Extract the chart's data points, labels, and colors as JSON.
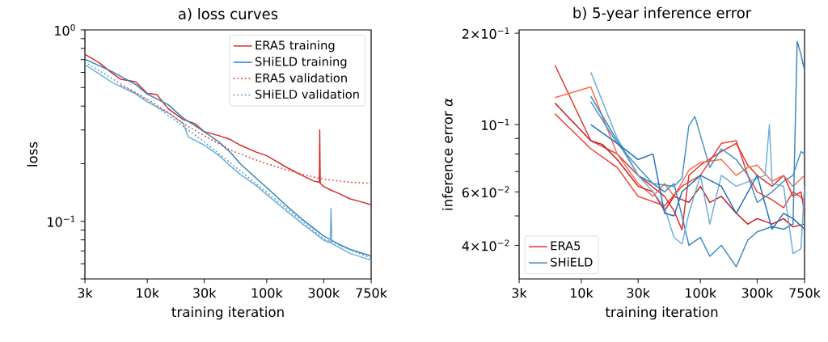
{
  "chart_data": [
    {
      "type": "line",
      "title": "a) loss curves",
      "xlabel": "training iteration",
      "ylabel": "loss",
      "log": "xy",
      "legend": "top right",
      "xlim": [
        3000,
        750000
      ],
      "ylim": [
        0.05,
        1
      ],
      "xticks": [
        {
          "value": 3000,
          "label": "3k"
        },
        {
          "value": 10000,
          "label": "10k"
        },
        {
          "value": 30000,
          "label": "30k"
        },
        {
          "value": 100000,
          "label": "100k"
        },
        {
          "value": 300000,
          "label": "300k"
        },
        {
          "value": 750000,
          "label": "750k"
        }
      ],
      "yticks": [
        {
          "value": 0.05,
          "label": null
        },
        {
          "value": 0.06,
          "label": null
        },
        {
          "value": 0.07,
          "label": null
        },
        {
          "value": 0.08,
          "label": null
        },
        {
          "value": 0.09,
          "label": null
        },
        {
          "value": 0.1,
          "label": "10$^{−1}$"
        },
        {
          "value": 0.2,
          "label": null
        },
        {
          "value": 0.3,
          "label": null
        },
        {
          "value": 0.4,
          "label": null
        },
        {
          "value": 0.5,
          "label": null
        },
        {
          "value": 0.6,
          "label": null
        },
        {
          "value": 0.7,
          "label": null
        },
        {
          "value": 0.8,
          "label": null
        },
        {
          "value": 0.9,
          "label": null
        },
        {
          "value": 1,
          "label": "10$^{0}$"
        }
      ],
      "series": [
        {
          "name": "ERA5 training",
          "color": "#d62a24",
          "line_style": "solid",
          "x": [
            3000,
            4000,
            5000,
            6000,
            8000,
            10000,
            12000,
            15000,
            20000,
            25000,
            30000,
            40000,
            50000,
            60000,
            80000,
            100000,
            120000,
            150000,
            200000,
            250000,
            276000,
            278000,
            281000,
            300000,
            350000,
            400000,
            500000,
            600000,
            750000
          ],
          "values": [
            0.746,
            0.67,
            0.598,
            0.552,
            0.535,
            0.466,
            0.459,
            0.387,
            0.34,
            0.324,
            0.294,
            0.28,
            0.267,
            0.25,
            0.231,
            0.22,
            0.206,
            0.19,
            0.173,
            0.162,
            0.16,
            0.3,
            0.158,
            0.152,
            0.145,
            0.14,
            0.131,
            0.127,
            0.122
          ]
        },
        {
          "name": "SHiELD training",
          "color": "#3182bd",
          "line_style": "solid",
          "x": [
            3000,
            5000,
            8000,
            10000,
            15000,
            20000,
            30000,
            40000,
            50000,
            60000,
            80000,
            100000,
            150000,
            200000,
            300000,
            400000,
            500000,
            750000
          ],
          "values": [
            0.703,
            0.608,
            0.518,
            0.462,
            0.406,
            0.346,
            0.294,
            0.259,
            0.228,
            0.2,
            0.17,
            0.15,
            0.119,
            0.102,
            0.0838,
            0.076,
            0.0713,
            0.0658
          ]
        },
        {
          "color": "#6baed6",
          "line_style": "solid",
          "x": [
            3000,
            5000,
            8000,
            10000,
            15000,
            20000,
            22000,
            30000,
            40000,
            50000,
            60000,
            80000,
            100000,
            150000,
            200000,
            300000,
            340000,
            346000,
            352000,
            500000,
            750000
          ],
          "values": [
            0.659,
            0.535,
            0.462,
            0.42,
            0.369,
            0.324,
            0.276,
            0.25,
            0.22,
            0.194,
            0.176,
            0.155,
            0.138,
            0.112,
            0.0968,
            0.0798,
            0.0773,
            0.117,
            0.0765,
            0.068,
            0.0626
          ]
        },
        {
          "name": "ERA5 validation",
          "color": "#e0352b",
          "line_style": "dotted",
          "x": [
            6000,
            8000,
            10000,
            15000,
            20000,
            30000,
            50000,
            80000,
            100000,
            150000,
            200000,
            300000,
            500000,
            750000
          ],
          "values": [
            0.513,
            0.47,
            0.434,
            0.369,
            0.324,
            0.28,
            0.235,
            0.21,
            0.2,
            0.185,
            0.176,
            0.166,
            0.16,
            0.158
          ]
        },
        {
          "name": "SHiELD validation",
          "color": "#4292c6",
          "line_style": "dotted",
          "x": [
            3000,
            10000,
            30000,
            100000,
            300000,
            750000
          ],
          "values": [
            0.68,
            0.43,
            0.26,
            0.142,
            0.081,
            0.064
          ]
        }
      ]
    },
    {
      "type": "line",
      "title": "b) 5-year inference error",
      "xlabel": "training iteration",
      "ylabel": "inference error *α*",
      "log": "xy",
      "legend": "bottom left",
      "xlim": [
        3000,
        750000
      ],
      "ylim": [
        0.031,
        0.205
      ],
      "xticks": [
        {
          "value": 3000,
          "label": "3k"
        },
        {
          "value": 10000,
          "label": "10k"
        },
        {
          "value": 30000,
          "label": "30k"
        },
        {
          "value": 100000,
          "label": "100k"
        },
        {
          "value": 300000,
          "label": "300k"
        },
        {
          "value": 750000,
          "label": "750k"
        }
      ],
      "yticks": [
        {
          "value": 0.04,
          "label": "4×10$^{−2}$"
        },
        {
          "value": 0.05,
          "label": null
        },
        {
          "value": 0.06,
          "label": "6×10$^{−2}$"
        },
        {
          "value": 0.07,
          "label": null
        },
        {
          "value": 0.08,
          "label": null
        },
        {
          "value": 0.09,
          "label": null
        },
        {
          "value": 0.1,
          "label": "10$^{−1}$"
        },
        {
          "value": 0.2,
          "label": "2×10$^{−1}$"
        }
      ],
      "series": [
        {
          "name": "ERA5",
          "color": "#e0302a",
          "x": [
            6000,
            12000,
            20000,
            30000,
            50000,
            60000,
            70000,
            80000,
            100000,
            150000,
            200000,
            250000,
            300000,
            400000,
            500000,
            600000,
            700000,
            750000
          ],
          "values": [
            0.157,
            0.0885,
            0.08,
            0.068,
            0.058,
            0.052,
            0.045,
            0.068,
            0.0735,
            0.0815,
            0.0867,
            0.0735,
            0.068,
            0.0626,
            0.068,
            0.058,
            0.06,
            0.051
          ]
        },
        {
          "color": "#fb6a4a",
          "x": [
            6000,
            12000,
            20000,
            30000,
            40000,
            50000,
            60000,
            80000,
            100000,
            150000,
            200000,
            250000,
            300000,
            400000,
            500000,
            600000,
            750000
          ],
          "values": [
            0.1226,
            0.133,
            0.08,
            0.0639,
            0.058,
            0.0639,
            0.058,
            0.0707,
            0.075,
            0.0767,
            0.068,
            0.0722,
            0.0735,
            0.065,
            0.068,
            0.0626,
            0.068
          ]
        },
        {
          "color": "#cb181d",
          "x": [
            6000,
            12000,
            15000,
            20000,
            30000,
            40000,
            50000,
            60000,
            80000,
            100000,
            120000,
            150000,
            200000,
            250000,
            300000,
            400000,
            500000,
            600000,
            750000
          ],
          "values": [
            0.1177,
            0.0885,
            0.086,
            0.0767,
            0.0626,
            0.06,
            0.052,
            0.058,
            0.0554,
            0.0626,
            0.0554,
            0.058,
            0.051,
            0.047,
            0.049,
            0.047,
            0.049,
            0.046,
            0.047
          ]
        },
        {
          "color": "#ef3b2c",
          "x": [
            6000,
            12000,
            20000,
            30000,
            50000,
            70000,
            100000,
            150000,
            200000,
            250000,
            300000,
            400000,
            500000,
            600000,
            750000
          ],
          "values": [
            0.1085,
            0.0832,
            0.0722,
            0.058,
            0.054,
            0.0626,
            0.068,
            0.0867,
            0.0885,
            0.068,
            0.06,
            0.0565,
            0.0532,
            0.06,
            0.0565
          ]
        },
        {
          "name": "SHiELD",
          "color": "#3a86c0",
          "x": [
            12000,
            20000,
            30000,
            40000,
            50000,
            60000,
            70000,
            80000,
            100000,
            120000,
            150000,
            200000,
            250000,
            300000,
            400000,
            500000,
            600000,
            650000,
            700000,
            750000
          ],
          "values": [
            0.1239,
            0.0885,
            0.068,
            0.0639,
            0.06,
            0.0639,
            0.05,
            0.04,
            0.0425,
            0.0368,
            0.04,
            0.034,
            0.0416,
            0.0443,
            0.0461,
            0.0452,
            0.047,
            0.188,
            0.17,
            0.1504
          ]
        },
        {
          "color": "#6baed6",
          "x": [
            12000,
            20000,
            30000,
            40000,
            50000,
            60000,
            70000,
            80000,
            100000,
            120000,
            150000,
            200000,
            350000,
            380000,
            400000,
            500000,
            600000,
            700000,
            750000
          ],
          "values": [
            0.1487,
            0.0903,
            0.068,
            0.06,
            0.0532,
            0.0425,
            0.0404,
            0.051,
            0.068,
            0.047,
            0.068,
            0.0626,
            0.068,
            0.1,
            0.0639,
            0.0626,
            0.0376,
            0.039,
            0.0626
          ]
        },
        {
          "color": "#4292c6",
          "x": [
            12000,
            20000,
            30000,
            40000,
            60000,
            70000,
            80000,
            90000,
            100000,
            120000,
            150000,
            200000,
            250000,
            300000,
            400000,
            500000,
            600000,
            700000,
            750000
          ],
          "values": [
            0.1189,
            0.0867,
            0.0722,
            0.0639,
            0.0626,
            0.0665,
            0.099,
            0.1063,
            0.092,
            0.0722,
            0.0832,
            0.0767,
            0.068,
            0.0554,
            0.06,
            0.065,
            0.068,
            0.0815,
            0.0799
          ]
        },
        {
          "color": "#2171b5",
          "x": [
            12000,
            20000,
            30000,
            40000,
            50000,
            60000,
            70000,
            100000,
            150000,
            200000,
            300000,
            400000,
            500000,
            600000,
            750000
          ],
          "values": [
            0.1,
            0.0867,
            0.0767,
            0.08,
            0.051,
            0.05,
            0.06,
            0.068,
            0.0626,
            0.051,
            0.068,
            0.0452,
            0.051,
            0.049,
            0.0452
          ]
        }
      ]
    }
  ]
}
